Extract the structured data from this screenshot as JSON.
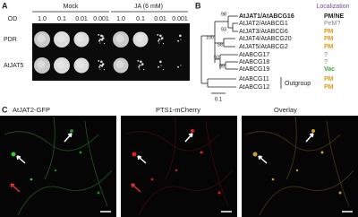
{
  "panel_a": {
    "label": "A",
    "conditions": [
      "Mock",
      "JA (6 mM)"
    ],
    "od_label": "OD",
    "od_values": [
      "1.0",
      "0.1",
      "0.01",
      "0.001",
      "1.0",
      "0.1",
      "0.01",
      "0.001"
    ],
    "rows": [
      "PDR",
      "AtJAT5"
    ]
  },
  "panel_b": {
    "label": "B",
    "localization_header": "Localization",
    "leaves": [
      {
        "name": "AtJAT1/AtABCG16",
        "localization": "PM/NE"
      },
      {
        "name": "AtJAT2/AtABCG1",
        "localization": "PeM?"
      },
      {
        "name": "AtJAT3/AtABCG6",
        "localization": "PM"
      },
      {
        "name": "AtJAT4/AtABCG20",
        "localization": "PM"
      },
      {
        "name": "AtJAT5/AtABCG2",
        "localization": "PM"
      },
      {
        "name": "AtABCG17",
        "localization": "?"
      },
      {
        "name": "AtABCG18",
        "localization": "?"
      },
      {
        "name": "AtABCG19",
        "localization": "Vac"
      },
      {
        "name": "AtABCG11",
        "localization": "PM"
      },
      {
        "name": "AtABCG12",
        "localization": "PM"
      }
    ],
    "bootstrap": [
      "98",
      "93",
      "100",
      "58",
      "93",
      "99"
    ],
    "outgroup_label": "Outgroup",
    "scale_label": "0.1"
  },
  "panel_c": {
    "label": "C",
    "images": [
      "AtJAT2-GFP",
      "PTS1-mCherry",
      "Overlay"
    ]
  }
}
